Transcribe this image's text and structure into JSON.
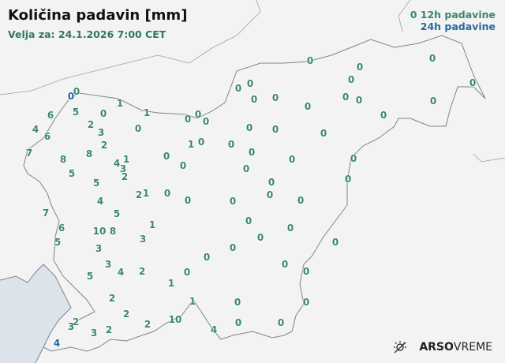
{
  "header": {
    "title": "Količina padavin [mm]",
    "valid": "Velja za: 24.1.2026 7:00 CET"
  },
  "legend": {
    "sample": "0",
    "h12": "12h padavine",
    "h24": "24h padavine",
    "color_12h": "#3a876a",
    "color_24h": "#23679b"
  },
  "logo": {
    "brand": "ARSO",
    "sub": "VREME",
    "icon": "sun-icon"
  },
  "stations": [
    {
      "v": "0",
      "t": "24h"
    },
    {
      "v": "0",
      "t": "12h"
    },
    {
      "v": "1",
      "t": "12h"
    },
    {
      "v": "1",
      "t": "12h"
    },
    {
      "v": "6",
      "t": "12h"
    },
    {
      "v": "5",
      "t": "12h"
    },
    {
      "v": "0",
      "t": "12h"
    },
    {
      "v": "4",
      "t": "12h"
    },
    {
      "v": "6",
      "t": "12h"
    },
    {
      "v": "2",
      "t": "12h"
    },
    {
      "v": "3",
      "t": "12h"
    },
    {
      "v": "0",
      "t": "12h"
    },
    {
      "v": "2",
      "t": "12h"
    },
    {
      "v": "7",
      "t": "12h"
    },
    {
      "v": "8",
      "t": "12h"
    },
    {
      "v": "8",
      "t": "12h"
    },
    {
      "v": "5",
      "t": "12h"
    },
    {
      "v": "4",
      "t": "12h"
    },
    {
      "v": "1",
      "t": "12h"
    },
    {
      "v": "3",
      "t": "12h"
    },
    {
      "v": "2",
      "t": "12h"
    },
    {
      "v": "5",
      "t": "12h"
    },
    {
      "v": "2",
      "t": "12h"
    },
    {
      "v": "1",
      "t": "12h"
    },
    {
      "v": "0",
      "t": "12h"
    },
    {
      "v": "0",
      "t": "12h"
    },
    {
      "v": "4",
      "t": "12h"
    },
    {
      "v": "5",
      "t": "12h"
    },
    {
      "v": "7",
      "t": "12h"
    },
    {
      "v": "6",
      "t": "12h"
    },
    {
      "v": "5",
      "t": "12h"
    },
    {
      "v": "10",
      "t": "12h"
    },
    {
      "v": "8",
      "t": "12h"
    },
    {
      "v": "1",
      "t": "12h"
    },
    {
      "v": "3",
      "t": "12h"
    },
    {
      "v": "3",
      "t": "12h"
    },
    {
      "v": "3",
      "t": "12h"
    },
    {
      "v": "5",
      "t": "12h"
    },
    {
      "v": "4",
      "t": "12h"
    },
    {
      "v": "2",
      "t": "12h"
    },
    {
      "v": "1",
      "t": "12h"
    },
    {
      "v": "0",
      "t": "12h"
    },
    {
      "v": "0",
      "t": "12h"
    },
    {
      "v": "2",
      "t": "12h"
    },
    {
      "v": "2",
      "t": "12h"
    },
    {
      "v": "2",
      "t": "12h"
    },
    {
      "v": "3",
      "t": "12h"
    },
    {
      "v": "3",
      "t": "12h"
    },
    {
      "v": "2",
      "t": "12h"
    },
    {
      "v": "2",
      "t": "12h"
    },
    {
      "v": "10",
      "t": "12h"
    },
    {
      "v": "1",
      "t": "12h"
    },
    {
      "v": "4",
      "t": "12h"
    },
    {
      "v": "0",
      "t": "12h"
    },
    {
      "v": "0",
      "t": "12h"
    },
    {
      "v": "0",
      "t": "12h"
    },
    {
      "v": "4",
      "t": "24h"
    },
    {
      "v": "0",
      "t": "12h"
    },
    {
      "v": "0",
      "t": "12h"
    },
    {
      "v": "0",
      "t": "12h"
    },
    {
      "v": "1",
      "t": "12h"
    },
    {
      "v": "0",
      "t": "12h"
    },
    {
      "v": "0",
      "t": "12h"
    },
    {
      "v": "0",
      "t": "12h"
    },
    {
      "v": "0",
      "t": "12h"
    },
    {
      "v": "0",
      "t": "12h"
    },
    {
      "v": "0",
      "t": "12h"
    },
    {
      "v": "0",
      "t": "12h"
    },
    {
      "v": "0",
      "t": "12h"
    },
    {
      "v": "0",
      "t": "12h"
    },
    {
      "v": "0",
      "t": "12h"
    },
    {
      "v": "0",
      "t": "12h"
    },
    {
      "v": "0",
      "t": "12h"
    },
    {
      "v": "0",
      "t": "12h"
    },
    {
      "v": "0",
      "t": "12h"
    },
    {
      "v": "0",
      "t": "12h"
    },
    {
      "v": "0",
      "t": "12h"
    },
    {
      "v": "0",
      "t": "12h"
    },
    {
      "v": "0",
      "t": "12h"
    },
    {
      "v": "0",
      "t": "12h"
    },
    {
      "v": "0",
      "t": "12h"
    },
    {
      "v": "0",
      "t": "12h"
    },
    {
      "v": "0",
      "t": "12h"
    },
    {
      "v": "0",
      "t": "12h"
    },
    {
      "v": "0",
      "t": "12h"
    },
    {
      "v": "0",
      "t": "12h"
    },
    {
      "v": "0",
      "t": "12h"
    },
    {
      "v": "0",
      "t": "12h"
    },
    {
      "v": "0",
      "t": "12h"
    },
    {
      "v": "0",
      "t": "12h"
    },
    {
      "v": "0",
      "t": "12h"
    },
    {
      "v": "0",
      "t": "12h"
    },
    {
      "v": "0",
      "t": "12h"
    },
    {
      "v": "0",
      "t": "12h"
    },
    {
      "v": "0",
      "t": "12h"
    },
    {
      "v": "0",
      "t": "12h"
    },
    {
      "v": "0",
      "t": "12h"
    },
    {
      "v": "0",
      "t": "12h"
    },
    {
      "v": "0",
      "t": "12h"
    }
  ]
}
